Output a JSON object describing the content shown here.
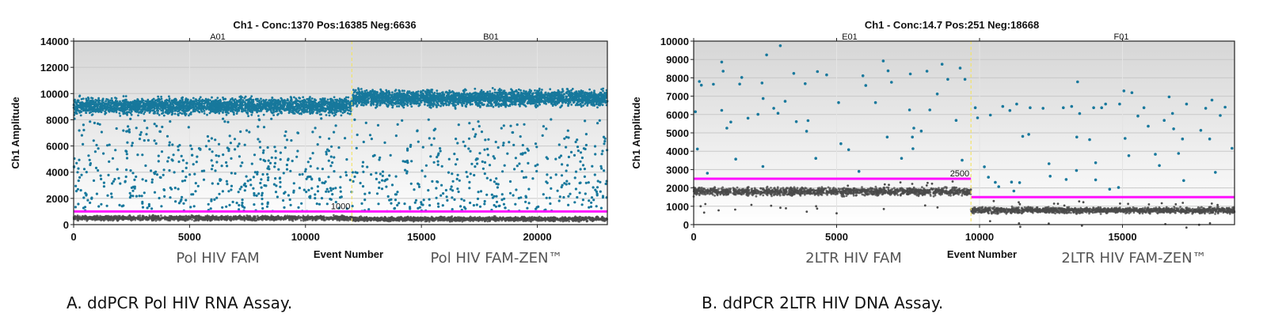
{
  "chart_data": [
    {
      "type": "scatter",
      "title": "Ch1 - Conc:1370 Pos:16385 Neg:6636",
      "xlabel": "Event Number",
      "ylabel": "Ch1 Amplitude",
      "xlim": [
        0,
        23021
      ],
      "ylim": [
        0,
        14000
      ],
      "xticks": [
        "0",
        "5000",
        "10000",
        "15000",
        "20000"
      ],
      "yticks": [
        "0",
        "2000",
        "4000",
        "6000",
        "8000",
        "10000",
        "12000",
        "14000"
      ],
      "grid": true,
      "wells": [
        {
          "name": "A01",
          "x_range": [
            0,
            12000
          ],
          "sample": "Pol HIV FAM"
        },
        {
          "name": "B01",
          "x_range": [
            12000,
            23021
          ],
          "sample": "Pol HIV FAM-ZEN™"
        }
      ],
      "thresholds": [
        {
          "x_range": [
            0,
            23021
          ],
          "value": 1000,
          "label": "1000"
        }
      ],
      "clusters": [
        {
          "kind": "positive",
          "x_range": [
            0,
            12000
          ],
          "y_range": [
            8200,
            9900
          ]
        },
        {
          "kind": "positive",
          "x_range": [
            12000,
            23021
          ],
          "y_range": [
            8800,
            10500
          ]
        },
        {
          "kind": "negative",
          "x_range": [
            0,
            12000
          ],
          "y_range": [
            250,
            750
          ]
        },
        {
          "kind": "negative",
          "x_range": [
            12000,
            23021
          ],
          "y_range": [
            200,
            650
          ]
        }
      ],
      "rain_range": [
        1000,
        8200
      ],
      "caption": "A. ddPCR Pol HIV RNA Assay."
    },
    {
      "type": "scatter",
      "title": "Ch1 - Conc:14.7 Pos:251 Neg:18668",
      "xlabel": "Event Number",
      "ylabel": "Ch1 Amplitude",
      "xlim": [
        0,
        18919
      ],
      "ylim": [
        0,
        10000
      ],
      "xticks": [
        "0",
        "5000",
        "10000",
        "15000"
      ],
      "yticks": [
        "0",
        "1000",
        "2000",
        "3000",
        "4000",
        "5000",
        "6000",
        "7000",
        "8000",
        "9000",
        "10000"
      ],
      "grid": true,
      "wells": [
        {
          "name": "E01",
          "x_range": [
            0,
            9700
          ],
          "sample": "2LTR HIV FAM"
        },
        {
          "name": "F01",
          "x_range": [
            9700,
            18919
          ],
          "sample": "2LTR HIV FAM-ZEN™"
        }
      ],
      "thresholds": [
        {
          "x_range": [
            0,
            9700
          ],
          "value": 2500,
          "label": "2500"
        },
        {
          "x_range": [
            9700,
            18919
          ],
          "value": 1500,
          "label": ""
        }
      ],
      "clusters": [
        {
          "kind": "negative",
          "x_range": [
            0,
            9700
          ],
          "y_range": [
            1500,
            2100
          ]
        },
        {
          "kind": "negative",
          "x_range": [
            9700,
            18919
          ],
          "y_range": [
            550,
            1000
          ]
        }
      ],
      "positives": [
        [
          60,
          6150
        ],
        [
          130,
          4120
        ],
        [
          200,
          7800
        ],
        [
          270,
          7600
        ],
        [
          480,
          2800
        ],
        [
          690,
          7650
        ],
        [
          980,
          8860
        ],
        [
          1030,
          8360
        ],
        [
          980,
          6230
        ],
        [
          1160,
          5260
        ],
        [
          1300,
          5590
        ],
        [
          1470,
          3570
        ],
        [
          1610,
          7660
        ],
        [
          1680,
          8020
        ],
        [
          1900,
          5800
        ],
        [
          2250,
          6010
        ],
        [
          2390,
          7720
        ],
        [
          2430,
          6870
        ],
        [
          2420,
          3170
        ],
        [
          2550,
          9250
        ],
        [
          2800,
          6340
        ],
        [
          2950,
          6070
        ],
        [
          3030,
          9750
        ],
        [
          3200,
          6720
        ],
        [
          3500,
          8240
        ],
        [
          3590,
          5610
        ],
        [
          3900,
          7680
        ],
        [
          4000,
          5670
        ],
        [
          3950,
          5090
        ],
        [
          4270,
          3610
        ],
        [
          4330,
          8340
        ],
        [
          4650,
          8160
        ],
        [
          5070,
          6650
        ],
        [
          5150,
          4410
        ],
        [
          5420,
          4080
        ],
        [
          5780,
          2900
        ],
        [
          5920,
          8110
        ],
        [
          6020,
          7580
        ],
        [
          6360,
          6650
        ],
        [
          6630,
          8920
        ],
        [
          6770,
          4770
        ],
        [
          6800,
          8380
        ],
        [
          6920,
          7760
        ],
        [
          7270,
          3610
        ],
        [
          7550,
          6250
        ],
        [
          7580,
          8210
        ],
        [
          7650,
          4770
        ],
        [
          7670,
          4140
        ],
        [
          7700,
          5260
        ],
        [
          7960,
          5100
        ],
        [
          8160,
          8360
        ],
        [
          8260,
          6250
        ],
        [
          8520,
          7120
        ],
        [
          8690,
          8740
        ],
        [
          8890,
          7920
        ],
        [
          9180,
          5680
        ],
        [
          9320,
          8530
        ],
        [
          9390,
          3510
        ],
        [
          9490,
          7920
        ],
        [
          9850,
          6370
        ],
        [
          9930,
          5820
        ],
        [
          10170,
          3150
        ],
        [
          10310,
          2580
        ],
        [
          10380,
          5970
        ],
        [
          10550,
          2300
        ],
        [
          10670,
          2070
        ],
        [
          10810,
          6440
        ],
        [
          11060,
          6220
        ],
        [
          11120,
          2320
        ],
        [
          11200,
          1830
        ],
        [
          11300,
          6570
        ],
        [
          11400,
          2290
        ],
        [
          11510,
          4810
        ],
        [
          11720,
          4920
        ],
        [
          11770,
          6370
        ],
        [
          12220,
          6340
        ],
        [
          12430,
          3320
        ],
        [
          12470,
          2640
        ],
        [
          12930,
          6370
        ],
        [
          13030,
          2460
        ],
        [
          13220,
          6440
        ],
        [
          13400,
          4770
        ],
        [
          13430,
          7780
        ],
        [
          13390,
          2950
        ],
        [
          13500,
          6050
        ],
        [
          13850,
          4630
        ],
        [
          13990,
          6370
        ],
        [
          14060,
          3370
        ],
        [
          14060,
          2440
        ],
        [
          14270,
          6370
        ],
        [
          14410,
          6570
        ],
        [
          14550,
          1930
        ],
        [
          14860,
          2020
        ],
        [
          14900,
          6570
        ],
        [
          15050,
          7290
        ],
        [
          15090,
          4700
        ],
        [
          15220,
          3760
        ],
        [
          15330,
          7190
        ],
        [
          15540,
          5920
        ],
        [
          15750,
          6370
        ],
        [
          15900,
          5360
        ],
        [
          16150,
          3830
        ],
        [
          16290,
          3220
        ],
        [
          16460,
          5680
        ],
        [
          16630,
          6960
        ],
        [
          16750,
          6060
        ],
        [
          16790,
          5220
        ],
        [
          16960,
          3880
        ],
        [
          17100,
          4670
        ],
        [
          17140,
          2400
        ],
        [
          17240,
          6570
        ],
        [
          17740,
          5140
        ],
        [
          17910,
          6340
        ],
        [
          18050,
          4670
        ],
        [
          18130,
          6790
        ],
        [
          18250,
          2850
        ],
        [
          18420,
          5950
        ],
        [
          18590,
          6400
        ],
        [
          18830,
          4160
        ]
      ],
      "caption": "B. ddPCR 2LTR HIV DNA Assay."
    }
  ],
  "colors": {
    "positive": "#17789c",
    "negative": "#4a4a4a",
    "threshold": "#ff10ff",
    "well_separator": "#f2e36a"
  }
}
